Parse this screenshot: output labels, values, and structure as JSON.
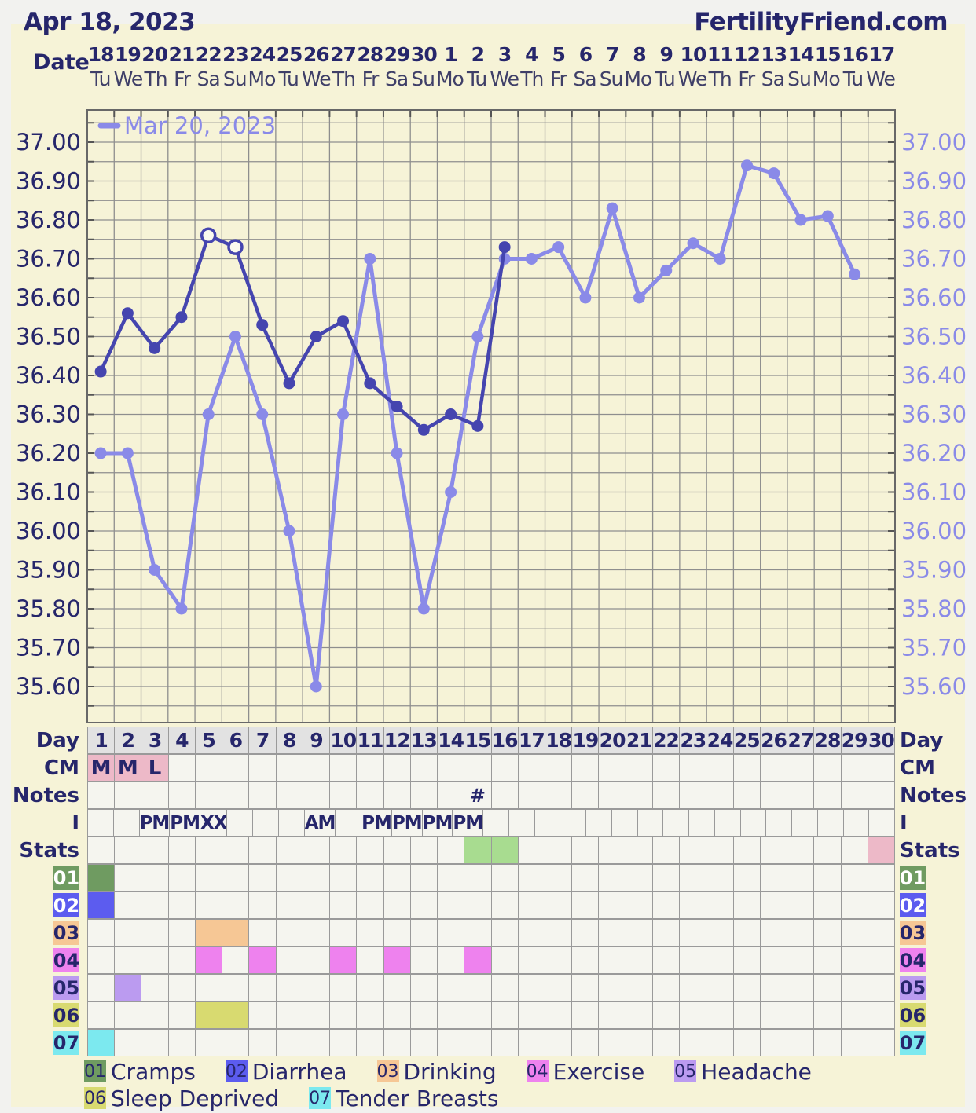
{
  "header": {
    "title": "Apr 18, 2023",
    "site": "FertilityFriend.com"
  },
  "colors": {
    "frame_bg": "#f2f2ef",
    "content_bg": "#f6f3d7",
    "navy_text": "#26266b",
    "secondary_text": "#3f3f68",
    "grid_line": "#8e8e8e",
    "plot_border": "#686868",
    "tick": "#555555",
    "cell_bg": "#f5f5ef",
    "cell_border": "#9a9a9a",
    "day_header_bg": "#e2e2e2",
    "cm_pink": "#edb9c8",
    "stats_green": "#a8dc90",
    "stats_pink": "#edb9c8",
    "current_series": "#4545af",
    "previous_series": "#8a8ae8",
    "open_point_fill": "#fbfaef"
  },
  "x_axis": {
    "label": "Date",
    "dates": [
      "18",
      "19",
      "20",
      "21",
      "22",
      "23",
      "24",
      "25",
      "26",
      "27",
      "28",
      "29",
      "30",
      "1",
      "2",
      "3",
      "4",
      "5",
      "6",
      "7",
      "8",
      "9",
      "10",
      "11",
      "12",
      "13",
      "14",
      "15",
      "16",
      "17"
    ],
    "weekdays": [
      "Tu",
      "We",
      "Th",
      "Fr",
      "Sa",
      "Su",
      "Mo",
      "Tu",
      "We",
      "Th",
      "Fr",
      "Sa",
      "Su",
      "Mo",
      "Tu",
      "We",
      "Th",
      "Fr",
      "Sa",
      "Su",
      "Mo",
      "Tu",
      "We",
      "Th",
      "Fr",
      "Sa",
      "Su",
      "Mo",
      "Tu",
      "We"
    ]
  },
  "y_axis": {
    "unit": "celsius",
    "max": 37.0,
    "min": 35.6,
    "label_step": 0.1,
    "grid_step": 0.05,
    "labels": [
      "37.00",
      "36.90",
      "36.80",
      "36.70",
      "36.60",
      "36.50",
      "36.40",
      "36.30",
      "36.20",
      "36.10",
      "36.00",
      "35.90",
      "35.80",
      "35.70",
      "35.60"
    ]
  },
  "chart_data": {
    "type": "line",
    "title": "Basal body temperature by cycle day",
    "days": [
      1,
      2,
      3,
      4,
      5,
      6,
      7,
      8,
      9,
      10,
      11,
      12,
      13,
      14,
      15,
      16,
      17,
      18,
      19,
      20,
      21,
      22,
      23,
      24,
      25,
      26,
      27,
      28,
      29,
      30
    ],
    "ylim": [
      35.5,
      37.08
    ],
    "grid": true,
    "legend_position": "top-left",
    "legend_label": "Mar 20, 2023",
    "series": [
      {
        "name": "Mar 20, 2023",
        "role": "previous-cycle",
        "color": "#8a8ae8",
        "open_points": [],
        "values": [
          36.2,
          36.2,
          35.9,
          35.8,
          36.3,
          36.5,
          36.3,
          36.0,
          35.6,
          36.3,
          36.7,
          36.2,
          35.8,
          36.1,
          36.5,
          36.7,
          36.7,
          36.73,
          36.6,
          36.83,
          36.6,
          36.67,
          36.74,
          36.7,
          36.94,
          36.92,
          36.8,
          36.81,
          36.66,
          null
        ]
      },
      {
        "name": "Apr 18, 2023",
        "role": "current-cycle",
        "color": "#4545af",
        "open_points": [
          5,
          6
        ],
        "values": [
          36.41,
          36.56,
          36.47,
          36.55,
          36.76,
          36.73,
          36.53,
          36.38,
          36.5,
          36.54,
          36.38,
          36.32,
          36.26,
          36.3,
          36.27,
          36.73,
          null,
          null,
          null,
          null,
          null,
          null,
          null,
          null,
          null,
          null,
          null,
          null,
          null,
          null
        ]
      }
    ]
  },
  "table": {
    "side_labels": [
      "Day",
      "CM",
      "Notes",
      "I",
      "Stats"
    ],
    "day_row": [
      "1",
      "2",
      "3",
      "4",
      "5",
      "6",
      "7",
      "8",
      "9",
      "10",
      "11",
      "12",
      "13",
      "14",
      "15",
      "16",
      "17",
      "18",
      "19",
      "20",
      "21",
      "22",
      "23",
      "24",
      "25",
      "26",
      "27",
      "28",
      "29",
      "30"
    ],
    "cm_row": {
      "1": "M",
      "2": "M",
      "3": "L"
    },
    "notes_row": {
      "15": "#"
    },
    "i_row": {
      "3": "PM",
      "4": "PM",
      "5": "XX",
      "9": "AM",
      "11": "PM",
      "12": "PM",
      "13": "PM",
      "14": "PM"
    },
    "stats_row": {
      "15": "#a8dc90",
      "16": "#a8dc90",
      "30": "#edb9c8"
    },
    "symptoms": [
      {
        "id": "01",
        "label": "Cramps",
        "color": "#6f9b61",
        "label_text_color": "#ffffff",
        "days": [
          1
        ]
      },
      {
        "id": "02",
        "label": "Diarrhea",
        "color": "#5c5cef",
        "label_text_color": "#ffffff",
        "days": [
          1
        ]
      },
      {
        "id": "03",
        "label": "Drinking",
        "color": "#f6c795",
        "label_text_color": "#26266b",
        "days": [
          5,
          6
        ]
      },
      {
        "id": "04",
        "label": "Exercise",
        "color": "#ee82ee",
        "label_text_color": "#26266b",
        "days": [
          5,
          7,
          10,
          12,
          15
        ]
      },
      {
        "id": "05",
        "label": "Headache",
        "color": "#bb9bf0",
        "label_text_color": "#26266b",
        "days": [
          2
        ]
      },
      {
        "id": "06",
        "label": "Sleep Deprived",
        "color": "#d8da70",
        "label_text_color": "#26266b",
        "days": [
          5,
          6
        ]
      },
      {
        "id": "07",
        "label": "Tender Breasts",
        "color": "#7ce9ef",
        "label_text_color": "#26266b",
        "days": [
          1
        ]
      }
    ]
  }
}
